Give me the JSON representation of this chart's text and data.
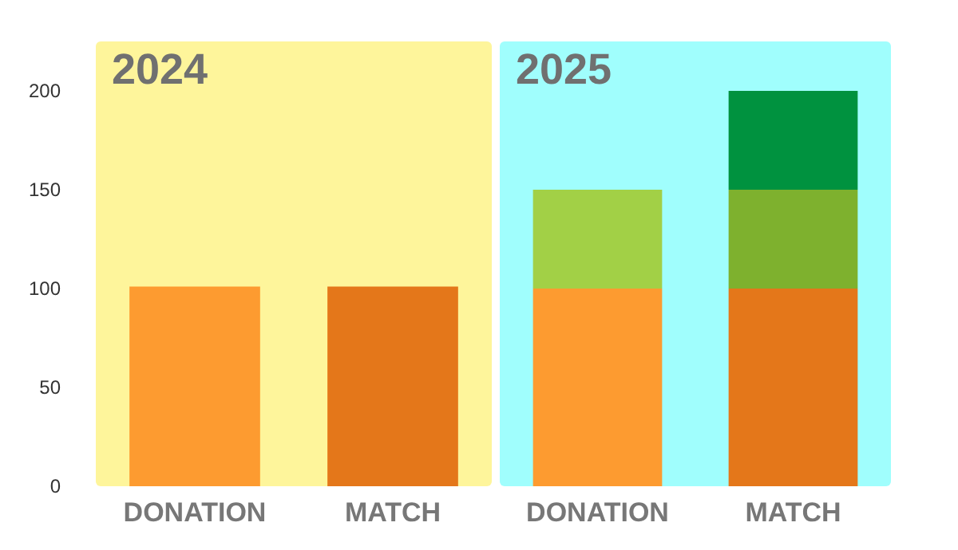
{
  "chart_data": [
    {
      "type": "bar",
      "stacked": true,
      "categories": [
        "DONATION",
        "MATCH"
      ],
      "series": [
        {
          "colors": [
            "#fd9b30",
            "#e4771a"
          ],
          "values": [
            101,
            101
          ]
        }
      ],
      "ylim": [
        0,
        225
      ],
      "yticks": [
        0,
        50,
        100,
        150,
        200
      ],
      "grid": false,
      "bands": [
        {
          "axis": "x",
          "from": "DONATION",
          "to": "MATCH",
          "label": "2024",
          "color": "#fef59b"
        }
      ]
    },
    {
      "type": "bar",
      "stacked": true,
      "categories": [
        "DONATION",
        "MATCH"
      ],
      "series": [
        {
          "colors": [
            "#fd9b30",
            "#e4771a"
          ],
          "values": [
            100,
            100
          ]
        },
        {
          "colors": [
            "#a2d046",
            "#7eb12e"
          ],
          "values": [
            50,
            50
          ]
        },
        {
          "color": "#00923f",
          "values": [
            null,
            50
          ]
        }
      ],
      "ylim": [
        0,
        225
      ],
      "yticks": [
        0,
        50,
        100,
        150,
        200
      ],
      "grid": false,
      "tick_labels": "x",
      "bands": [
        {
          "axis": "x",
          "from": "DONATION",
          "to": "MATCH",
          "label": "2025",
          "color": "#a0fefd"
        }
      ]
    }
  ]
}
